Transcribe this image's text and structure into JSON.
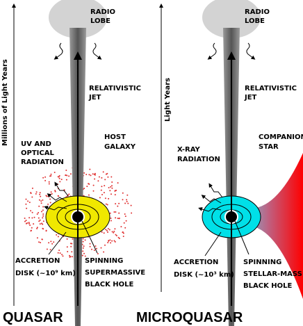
{
  "panels": [
    {
      "axis_label": "Millions of Light Years",
      "radio_lobe": [
        "RADIO",
        "LOBE"
      ],
      "jet": [
        "RELATIVISTIC",
        "JET"
      ],
      "radiation": [
        "UV AND",
        "OPTICAL",
        "RADIATION"
      ],
      "host": [
        "HOST",
        "GALAXY"
      ],
      "disk": [
        "ACCRETION",
        "DISK (~10⁹ km)"
      ],
      "hole": [
        "SPINNING",
        "SUPERMASSIVE",
        "BLACK HOLE"
      ],
      "title": "QUASAR"
    },
    {
      "axis_label": "Light Years",
      "radio_lobe": [
        "RADIO",
        "LOBE"
      ],
      "jet": [
        "RELATIVISTIC",
        "JET"
      ],
      "radiation": [
        "X-RAY",
        "RADIATION"
      ],
      "companion": [
        "COMPANION",
        "STAR"
      ],
      "disk": [
        "ACCRETION",
        "DISK (~10³ km)"
      ],
      "hole": [
        "SPINNING",
        "STELLAR-MASS",
        "BLACK HOLE"
      ],
      "title": "MICROQUASAR"
    }
  ]
}
